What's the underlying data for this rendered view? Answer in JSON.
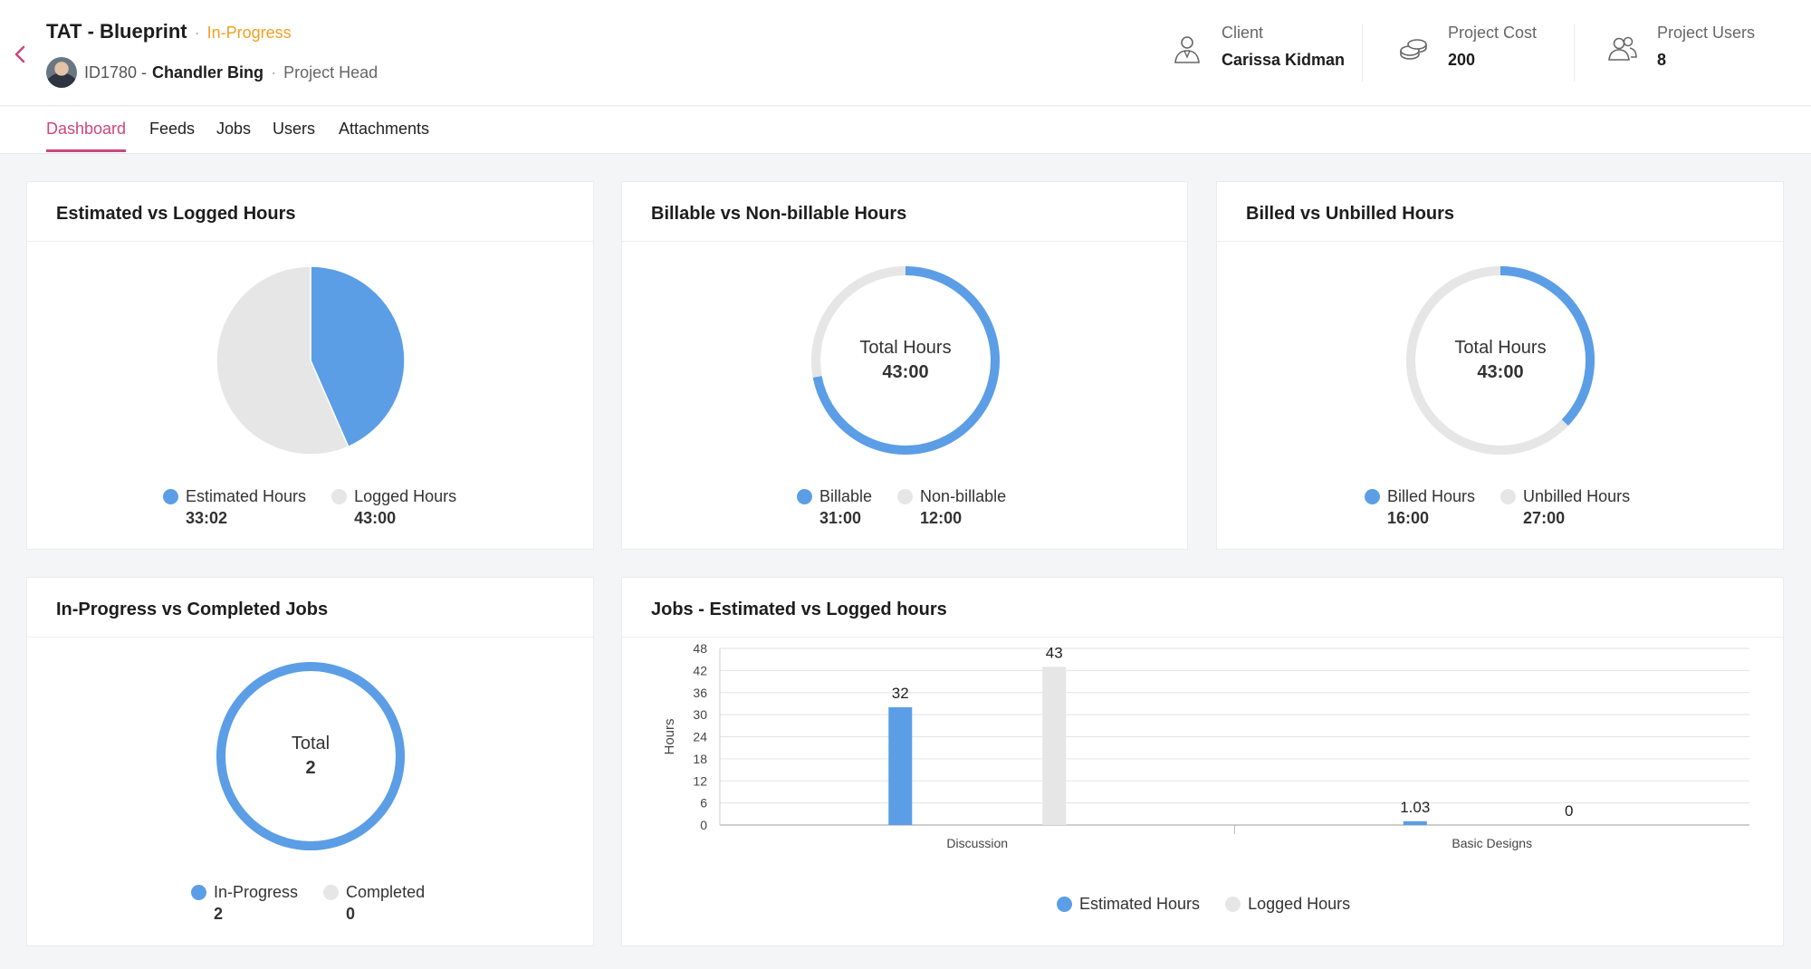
{
  "colors": {
    "accent": "#c9477f",
    "blue": "#5b9ee6",
    "grey": "#e6e6e6",
    "status": "#f0a020"
  },
  "header": {
    "project_title": "TAT - Blueprint",
    "status": "In-Progress",
    "owner_id": "ID1780 -",
    "owner_name": "Chandler Bing",
    "owner_role": "Project Head",
    "client_label": "Client",
    "client_value": "Carissa Kidman",
    "cost_label": "Project Cost",
    "cost_value": "200",
    "users_label": "Project Users",
    "users_value": "8"
  },
  "tabs": [
    {
      "label": "Dashboard",
      "active": true
    },
    {
      "label": "Feeds"
    },
    {
      "label": "Jobs"
    },
    {
      "label": "Users"
    },
    {
      "label": "Attachments"
    }
  ],
  "cards": {
    "est_logged": {
      "title": "Estimated vs Logged Hours",
      "legend": [
        {
          "label": "Estimated Hours",
          "value": "33:02"
        },
        {
          "label": "Logged Hours",
          "value": "43:00"
        }
      ]
    },
    "billable": {
      "title": "Billable vs Non-billable Hours",
      "center_label": "Total Hours",
      "center_value": "43:00",
      "legend": [
        {
          "label": "Billable",
          "value": "31:00"
        },
        {
          "label": "Non-billable",
          "value": "12:00"
        }
      ]
    },
    "billed": {
      "title": "Billed vs Unbilled Hours",
      "center_label": "Total Hours",
      "center_value": "43:00",
      "legend": [
        {
          "label": "Billed Hours",
          "value": "16:00"
        },
        {
          "label": "Unbilled Hours",
          "value": "27:00"
        }
      ]
    },
    "jobs": {
      "title": "In-Progress vs Completed Jobs",
      "center_label": "Total",
      "center_value": "2",
      "legend": [
        {
          "label": "In-Progress",
          "value": "2"
        },
        {
          "label": "Completed",
          "value": "0"
        }
      ]
    },
    "jobs_hours": {
      "title": "Jobs - Estimated vs Logged hours",
      "legend": [
        {
          "label": "Estimated Hours"
        },
        {
          "label": "Logged Hours"
        }
      ]
    }
  },
  "chart_data": [
    {
      "type": "pie",
      "title": "Estimated vs Logged Hours",
      "labels": [
        "Estimated Hours",
        "Logged Hours"
      ],
      "values": [
        33.03,
        43.0
      ]
    },
    {
      "type": "pie",
      "title": "Billable vs Non-billable Hours",
      "center_label": "Total Hours",
      "center_value": "43:00",
      "labels": [
        "Billable",
        "Non-billable"
      ],
      "values": [
        31,
        12
      ]
    },
    {
      "type": "pie",
      "title": "Billed vs Unbilled Hours",
      "center_label": "Total Hours",
      "center_value": "43:00",
      "labels": [
        "Billed Hours",
        "Unbilled Hours"
      ],
      "values": [
        16,
        27
      ]
    },
    {
      "type": "pie",
      "title": "In-Progress vs Completed Jobs",
      "center_label": "Total",
      "center_value": "2",
      "labels": [
        "In-Progress",
        "Completed"
      ],
      "values": [
        2,
        0
      ]
    },
    {
      "type": "bar",
      "title": "Jobs - Estimated vs Logged hours",
      "ylabel": "Hours",
      "ylim": [
        0,
        48
      ],
      "yticks": [
        0,
        6,
        12,
        18,
        24,
        30,
        36,
        42,
        48
      ],
      "categories": [
        "Discussion",
        "Basic Designs"
      ],
      "series": [
        {
          "name": "Estimated Hours",
          "values": [
            32,
            1.03
          ],
          "labels": [
            "32",
            "1.03"
          ]
        },
        {
          "name": "Logged Hours",
          "values": [
            43,
            0
          ],
          "labels": [
            "43",
            "0"
          ]
        }
      ],
      "grid": true,
      "legend": "bottom"
    }
  ]
}
